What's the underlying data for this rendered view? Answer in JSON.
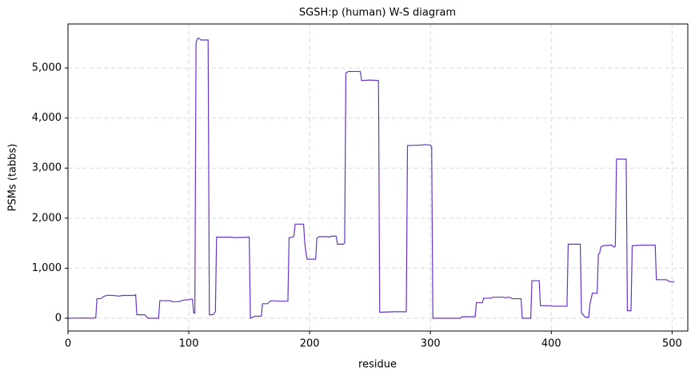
{
  "chart_data": {
    "type": "line",
    "title": "SGSH:p (human) W-S diagram",
    "x_label": "residue",
    "y_label": "PSMs (tabbs)",
    "color": "#6633cc",
    "grid": true,
    "xlim": [
      0,
      513
    ],
    "ylim": [
      -256,
      5880
    ],
    "xticks": [
      0,
      100,
      200,
      300,
      400,
      500
    ],
    "yticks": [
      0,
      {
        "value": 1000,
        "label": "1,000"
      },
      {
        "value": 2000,
        "label": "2,000"
      },
      {
        "value": 3000,
        "label": "3,000"
      },
      {
        "value": 4000,
        "label": "4,000"
      },
      {
        "value": 5000,
        "label": "5,000"
      }
    ],
    "x": [
      0,
      15,
      20,
      23,
      24,
      27,
      30,
      33,
      40,
      42,
      45,
      55,
      56,
      57,
      63,
      64,
      66,
      75,
      76,
      85,
      86,
      92,
      95,
      100,
      101,
      103,
      104,
      105,
      106,
      107,
      108,
      110,
      116,
      117,
      120,
      122,
      123,
      135,
      138,
      150,
      151,
      153,
      155,
      160,
      161,
      165,
      168,
      175,
      182,
      183,
      186,
      187,
      188,
      195,
      196,
      197,
      198,
      205,
      206,
      208,
      215,
      216,
      218,
      222,
      223,
      228,
      229,
      230,
      232,
      242,
      243,
      250,
      257,
      258,
      270,
      280,
      281,
      292,
      295,
      300,
      301,
      302,
      325,
      326,
      337,
      338,
      343,
      344,
      350,
      352,
      360,
      362,
      365,
      368,
      375,
      376,
      383,
      384,
      390,
      391,
      400,
      401,
      413,
      414,
      424,
      425,
      426,
      428,
      431,
      432,
      434,
      438,
      439,
      440,
      441,
      443,
      450,
      452,
      453,
      454,
      462,
      463,
      466,
      467,
      475,
      486,
      487,
      495,
      496,
      498,
      502
    ],
    "values": [
      0,
      5,
      0,
      10,
      390,
      390,
      440,
      460,
      450,
      440,
      455,
      455,
      470,
      70,
      70,
      60,
      0,
      0,
      350,
      350,
      330,
      330,
      360,
      370,
      380,
      380,
      110,
      100,
      5500,
      5580,
      5600,
      5560,
      5560,
      70,
      70,
      130,
      1620,
      1620,
      1610,
      1620,
      0,
      20,
      40,
      40,
      290,
      290,
      350,
      340,
      340,
      1610,
      1620,
      1640,
      1880,
      1880,
      1500,
      1300,
      1180,
      1180,
      1600,
      1630,
      1630,
      1620,
      1640,
      1640,
      1480,
      1480,
      1500,
      4900,
      4930,
      4930,
      4750,
      4760,
      4750,
      120,
      130,
      130,
      3450,
      3460,
      3470,
      3460,
      3430,
      0,
      0,
      30,
      30,
      310,
      310,
      400,
      400,
      420,
      420,
      410,
      420,
      390,
      390,
      0,
      0,
      750,
      750,
      250,
      250,
      240,
      240,
      1480,
      1480,
      100,
      80,
      20,
      20,
      280,
      500,
      500,
      1280,
      1300,
      1420,
      1450,
      1460,
      1420,
      1440,
      3180,
      3180,
      150,
      150,
      1450,
      1460,
      1460,
      770,
      770,
      760,
      730,
      730
    ]
  }
}
